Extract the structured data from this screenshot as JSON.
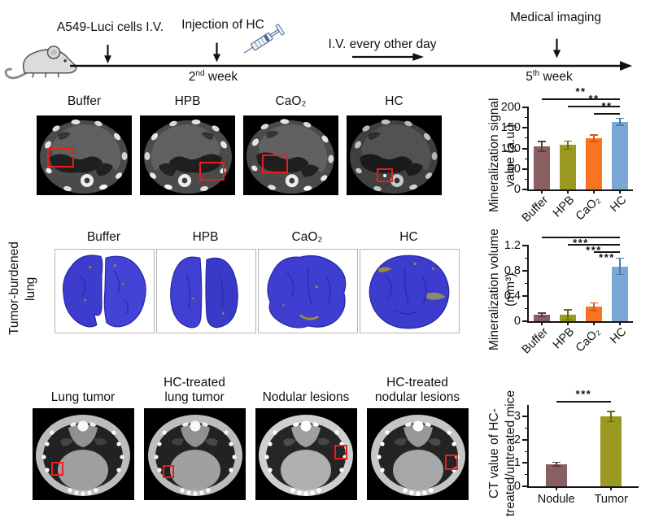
{
  "timeline": {
    "cells_label": "A549-Luci cells I.V.",
    "injection_label": "Injection of HC",
    "iv_label": "I.V. every other day",
    "imaging_label": "Medical imaging",
    "week2": {
      "num": "2",
      "sup": "nd",
      "rest": " week"
    },
    "week5": {
      "num": "5",
      "sup": "th",
      "rest": " week"
    },
    "icons": {
      "mouse": "mouse-icon",
      "syringe": "syringe-icon",
      "down_arrow": "down-arrow-icon",
      "right_arrow": "right-arrow-icon",
      "timeline_arrow": "timeline-arrow-icon"
    }
  },
  "ct_row": {
    "labels": [
      "Buffer",
      "HPB",
      "CaO₂",
      "HC"
    ]
  },
  "lung_row": {
    "side_label": "Tumor-burdened lung",
    "labels": [
      "Buffer",
      "HPB",
      "CaO₂",
      "HC"
    ]
  },
  "bottom_row": {
    "labels": [
      "Lung tumor",
      "HC-treated lung tumor",
      "Nodular lesions",
      "HC-treated nodular lesions"
    ]
  },
  "chart_data": [
    {
      "type": "bar",
      "title": "",
      "ylabel": "Mineralization signal value (a.u.)",
      "categories": [
        "Buffer",
        "HPB",
        "CaO₂",
        "HC"
      ],
      "values": [
        105,
        108,
        125,
        165
      ],
      "errors": [
        12,
        10,
        8,
        8
      ],
      "colors": [
        "#8a5f62",
        "#9a9a22",
        "#f97420",
        "#7aa7d6"
      ],
      "error_colors": [
        "#5d3a3d",
        "#6a6a12",
        "#d05a10",
        "#4a7cab"
      ],
      "ylim": [
        0,
        200
      ],
      "yticks": [
        0,
        50,
        100,
        150,
        200
      ],
      "yticks_minor": [
        25,
        75,
        125,
        175
      ],
      "x_tick_rotation": 45,
      "grid": false,
      "significance": [
        {
          "a": 0,
          "b": 3,
          "stars": "**"
        },
        {
          "a": 1,
          "b": 3,
          "stars": "**"
        },
        {
          "a": 2,
          "b": 3,
          "stars": "**"
        }
      ]
    },
    {
      "type": "bar",
      "title": "",
      "ylabel": "Mineralization volume (mm³)",
      "categories": [
        "Buffer",
        "HPB",
        "CaO₂",
        "HC"
      ],
      "values": [
        0.1,
        0.1,
        0.23,
        0.87
      ],
      "errors": [
        0.03,
        0.08,
        0.06,
        0.13
      ],
      "colors": [
        "#8a5f62",
        "#9a9a22",
        "#f97420",
        "#7aa7d6"
      ],
      "error_colors": [
        "#5d3a3d",
        "#6a6a12",
        "#d05a10",
        "#4a7cab"
      ],
      "ylim": [
        0,
        1.2
      ],
      "yticks": [
        0,
        0.4,
        0.8,
        1.2
      ],
      "yticks_minor": [
        0.2,
        0.6,
        1.0
      ],
      "x_tick_rotation": 45,
      "grid": false,
      "significance": [
        {
          "a": 0,
          "b": 3,
          "stars": "***"
        },
        {
          "a": 1,
          "b": 3,
          "stars": "***"
        },
        {
          "a": 2,
          "b": 3,
          "stars": "***"
        }
      ]
    },
    {
      "type": "bar",
      "title": "",
      "ylabel": "CT value of HC-treated/untreated mice",
      "categories": [
        "Nodule",
        "Tumor"
      ],
      "values": [
        0.95,
        3.0
      ],
      "errors": [
        0.08,
        0.22
      ],
      "colors": [
        "#8a5f62",
        "#9a9a22"
      ],
      "error_colors": [
        "#5d3a3d",
        "#6a6a12"
      ],
      "ylim": [
        0,
        3.5
      ],
      "yticks": [
        0,
        1,
        2,
        3
      ],
      "yticks_minor": [
        0.5,
        1.5,
        2.5
      ],
      "x_tick_rotation": 0,
      "grid": false,
      "significance": [
        {
          "a": 0,
          "b": 1,
          "stars": "***"
        }
      ]
    }
  ]
}
